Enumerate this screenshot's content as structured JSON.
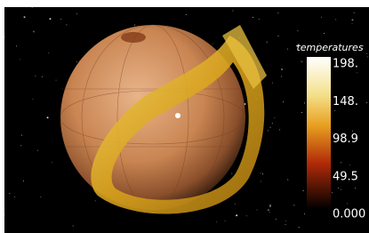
{
  "colorbar": {
    "title": "temperatures",
    "range": [
      0,
      198
    ],
    "ticks": [
      {
        "value": 198,
        "label": "198."
      },
      {
        "value": 148,
        "label": "148."
      },
      {
        "value": 98.9,
        "label": "98.9"
      },
      {
        "value": 49.5,
        "label": "49.5"
      },
      {
        "value": 0,
        "label": "0.000"
      }
    ]
  }
}
